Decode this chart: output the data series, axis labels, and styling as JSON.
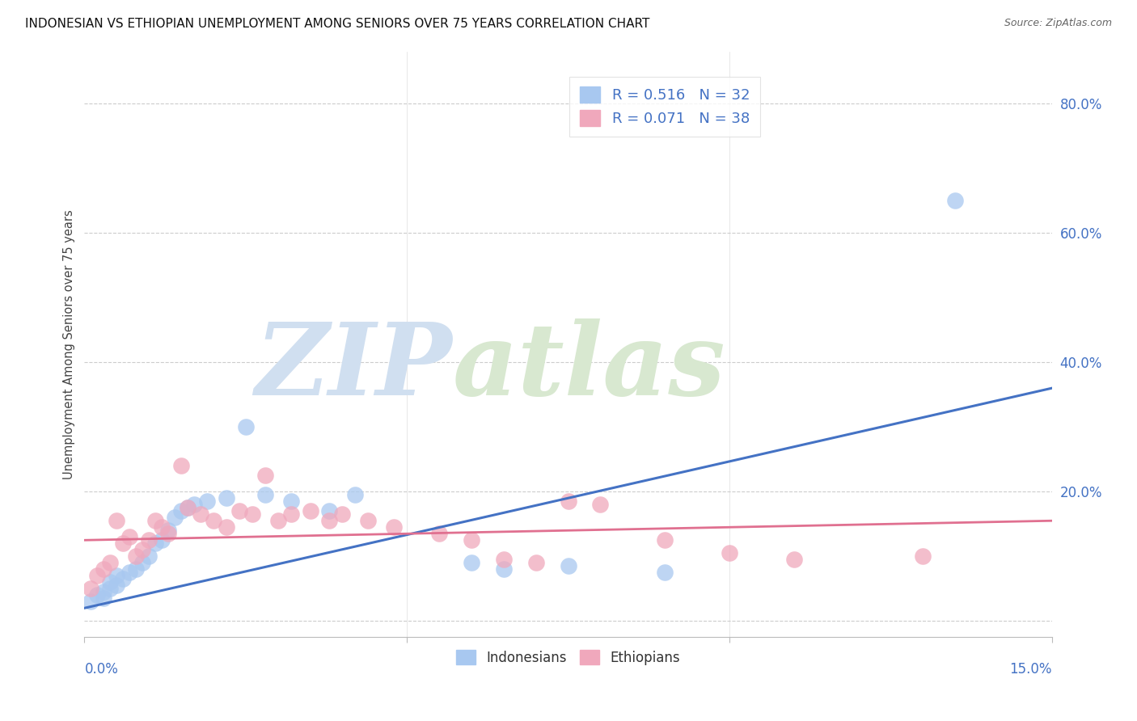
{
  "title": "INDONESIAN VS ETHIOPIAN UNEMPLOYMENT AMONG SENIORS OVER 75 YEARS CORRELATION CHART",
  "source": "Source: ZipAtlas.com",
  "ylabel": "Unemployment Among Seniors over 75 years",
  "yticks": [
    0.0,
    0.2,
    0.4,
    0.6,
    0.8
  ],
  "ytick_labels": [
    "",
    "20.0%",
    "40.0%",
    "60.0%",
    "80.0%"
  ],
  "xlim": [
    0.0,
    0.15
  ],
  "ylim": [
    -0.025,
    0.88
  ],
  "legend_indonesian": "R = 0.516   N = 32",
  "legend_ethiopian": "R = 0.071   N = 38",
  "legend_label1": "Indonesians",
  "legend_label2": "Ethiopians",
  "color_indonesian": "#A8C8F0",
  "color_ethiopian": "#F0A8BC",
  "line_color_indonesian": "#4472C4",
  "line_color_ethiopian": "#E07090",
  "watermark_zip": "ZIP",
  "watermark_atlas": "atlas",
  "watermark_color": "#D0DFF0",
  "indonesian_x": [
    0.001,
    0.002,
    0.003,
    0.003,
    0.004,
    0.004,
    0.005,
    0.005,
    0.006,
    0.007,
    0.008,
    0.009,
    0.01,
    0.011,
    0.012,
    0.013,
    0.014,
    0.015,
    0.016,
    0.017,
    0.019,
    0.022,
    0.025,
    0.028,
    0.032,
    0.038,
    0.042,
    0.06,
    0.065,
    0.075,
    0.09,
    0.135
  ],
  "indonesian_y": [
    0.03,
    0.04,
    0.035,
    0.045,
    0.05,
    0.06,
    0.055,
    0.07,
    0.065,
    0.075,
    0.08,
    0.09,
    0.1,
    0.12,
    0.125,
    0.14,
    0.16,
    0.17,
    0.175,
    0.18,
    0.185,
    0.19,
    0.3,
    0.195,
    0.185,
    0.17,
    0.195,
    0.09,
    0.08,
    0.085,
    0.075,
    0.65
  ],
  "ethiopian_x": [
    0.001,
    0.002,
    0.003,
    0.004,
    0.005,
    0.006,
    0.007,
    0.008,
    0.009,
    0.01,
    0.011,
    0.012,
    0.013,
    0.015,
    0.016,
    0.018,
    0.02,
    0.022,
    0.024,
    0.026,
    0.028,
    0.03,
    0.032,
    0.035,
    0.038,
    0.04,
    0.044,
    0.048,
    0.055,
    0.06,
    0.065,
    0.07,
    0.075,
    0.08,
    0.09,
    0.1,
    0.11,
    0.13
  ],
  "ethiopian_y": [
    0.05,
    0.07,
    0.08,
    0.09,
    0.155,
    0.12,
    0.13,
    0.1,
    0.11,
    0.125,
    0.155,
    0.145,
    0.135,
    0.24,
    0.175,
    0.165,
    0.155,
    0.145,
    0.17,
    0.165,
    0.225,
    0.155,
    0.165,
    0.17,
    0.155,
    0.165,
    0.155,
    0.145,
    0.135,
    0.125,
    0.095,
    0.09,
    0.185,
    0.18,
    0.125,
    0.105,
    0.095,
    0.1
  ],
  "background_color": "#FFFFFF",
  "grid_color": "#CCCCCC",
  "indo_line_x": [
    0.0,
    0.15
  ],
  "indo_line_y": [
    0.02,
    0.36
  ],
  "eth_line_x": [
    0.0,
    0.15
  ],
  "eth_line_y": [
    0.125,
    0.155
  ]
}
